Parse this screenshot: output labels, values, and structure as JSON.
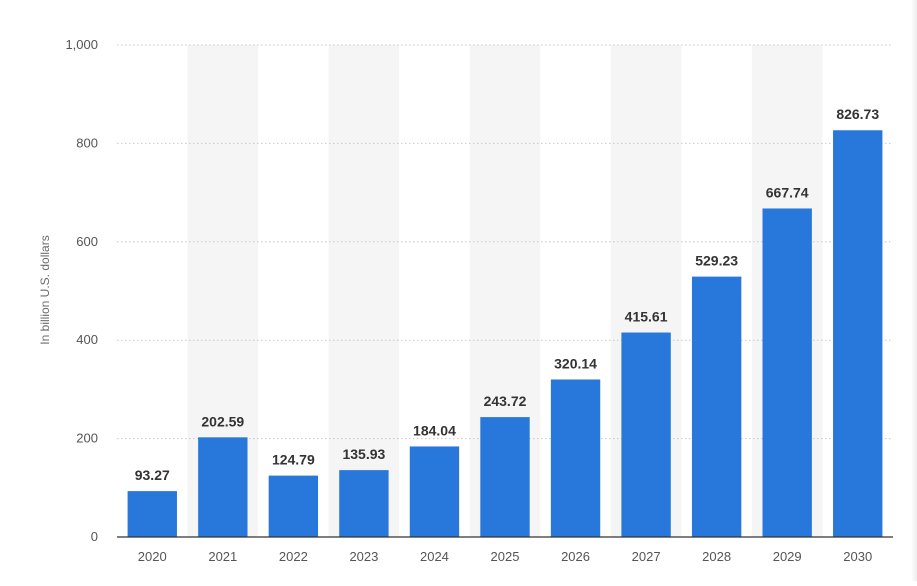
{
  "chart_data": {
    "type": "bar",
    "categories": [
      "2020",
      "2021",
      "2022",
      "2023",
      "2024",
      "2025",
      "2026",
      "2027",
      "2028",
      "2029",
      "2030"
    ],
    "values": [
      93.27,
      202.59,
      124.79,
      135.93,
      184.04,
      243.72,
      320.14,
      415.61,
      529.23,
      667.74,
      826.73
    ],
    "value_labels": [
      "93.27",
      "202.59",
      "124.79",
      "135.93",
      "184.04",
      "243.72",
      "320.14",
      "415.61",
      "529.23",
      "667.74",
      "826.73"
    ],
    "ylabel": "In billion U.S. dollars",
    "xlabel": "",
    "ylim": [
      0,
      1000
    ],
    "yticks": [
      0,
      200,
      400,
      600,
      800,
      1000
    ],
    "ytick_labels": [
      "0",
      "200",
      "400",
      "600",
      "800",
      "1,000"
    ],
    "grid": true,
    "bar_color": "#2878dc",
    "band_color": "#f5f5f5"
  }
}
